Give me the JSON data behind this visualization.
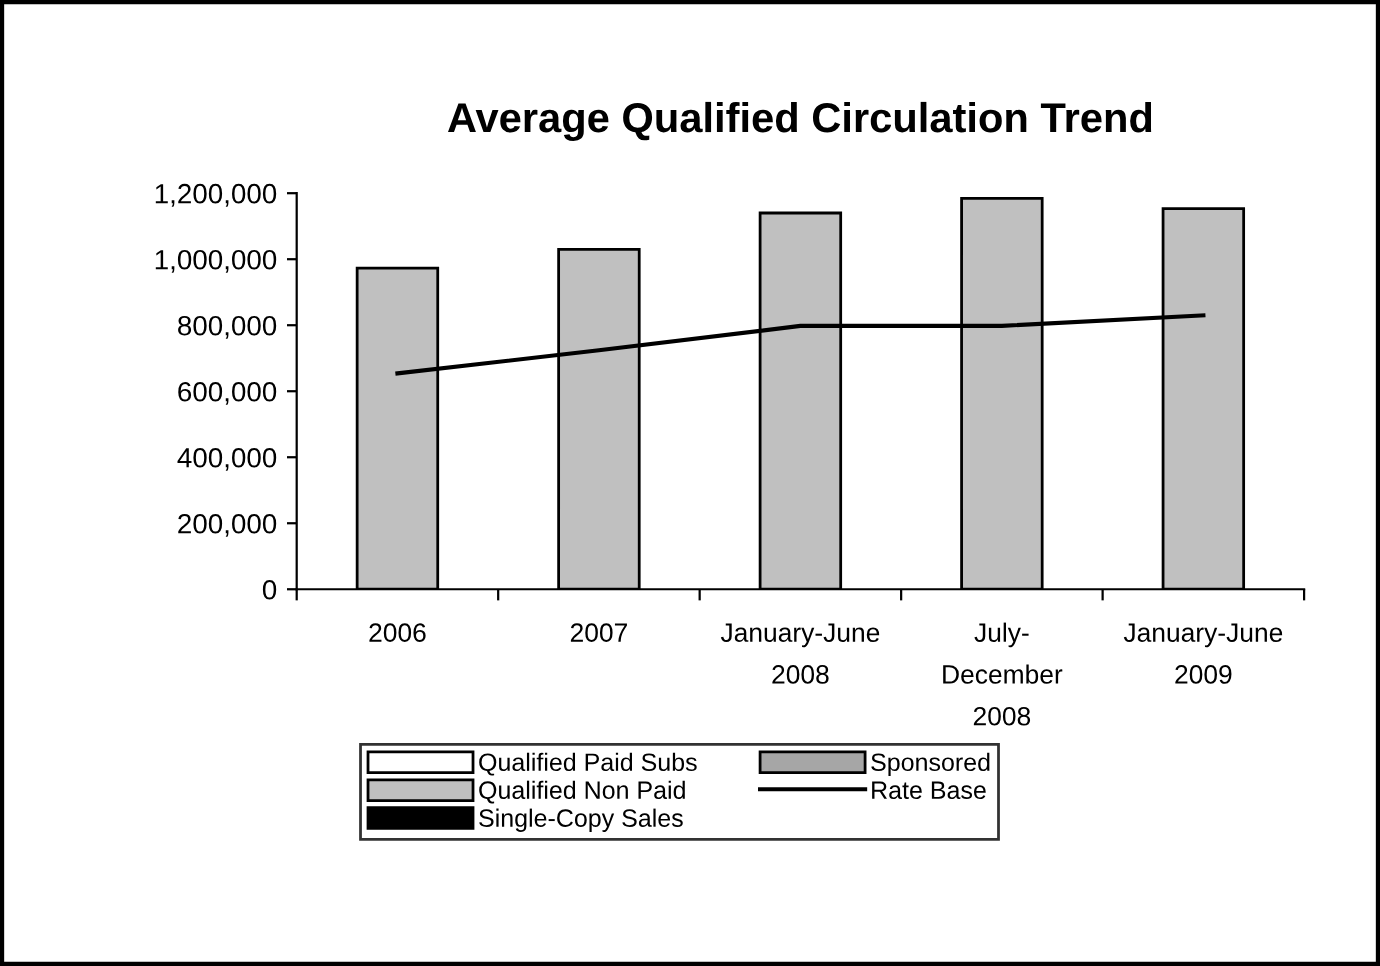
{
  "chart_data": {
    "type": "bar",
    "title": "Average Qualified Circulation Trend",
    "categories": [
      "2006",
      "2007",
      "January-June\n2008",
      "July-\nDecember\n2008",
      "January-June\n2009"
    ],
    "series": [
      {
        "name": "Qualified Paid Subs",
        "color": "#ffffff",
        "values": [
          null,
          null,
          null,
          null,
          null
        ]
      },
      {
        "name": "Qualified Non Paid",
        "color": "#c0c0c0",
        "values": [
          973000,
          1030000,
          1140000,
          1184000,
          1153000
        ]
      },
      {
        "name": "Single-Copy Sales",
        "color": "#000000",
        "values": [
          null,
          null,
          null,
          null,
          null
        ]
      },
      {
        "name": "Sponsored",
        "color": "#a6a6a6",
        "values": [
          null,
          null,
          null,
          null,
          null
        ]
      },
      {
        "name": "Rate Base",
        "type": "line",
        "color": "#000000",
        "values": [
          654000,
          724000,
          798000,
          798000,
          830000
        ]
      }
    ],
    "ylim": [
      0,
      1200000
    ],
    "yticks": [
      {
        "value": 0,
        "label": "0"
      },
      {
        "value": 200000,
        "label": "200,000"
      },
      {
        "value": 400000,
        "label": "400,000"
      },
      {
        "value": 600000,
        "label": "600,000"
      },
      {
        "value": 800000,
        "label": "800,000"
      },
      {
        "value": 1000000,
        "label": "1,000,000"
      },
      {
        "value": 1200000,
        "label": "1,200,000"
      }
    ],
    "grid": false,
    "legend": "bottom",
    "marker": "none"
  }
}
